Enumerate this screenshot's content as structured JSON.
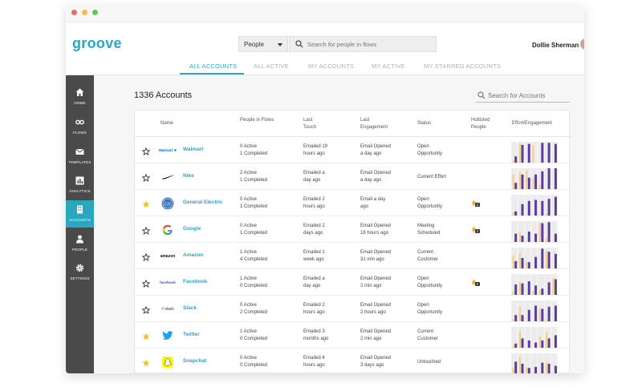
{
  "app": {
    "logo_text": "groove",
    "search_scope": "People",
    "search_placeholder": "Search for people in flows",
    "user_name": "Dollie Sherman"
  },
  "tabs": [
    "ALL ACCOUNTS",
    "ALL ACTIVE",
    "MY ACCOUNTS",
    "MY ACTIVE",
    "MY STARRED ACCOUNTS"
  ],
  "active_tab": "ALL ACCOUNTS",
  "sidebar": [
    {
      "label": "HOME",
      "icon": "home-icon"
    },
    {
      "label": "FLOWS",
      "icon": "infinity-icon"
    },
    {
      "label": "TEMPLATES",
      "icon": "mail-icon"
    },
    {
      "label": "ANALYTICS",
      "icon": "bar-chart-icon"
    },
    {
      "label": "ACCOUNTS",
      "icon": "accounts-icon",
      "active": true
    },
    {
      "label": "PEOPLE",
      "icon": "person-icon"
    },
    {
      "label": "SETTINGS",
      "icon": "gear-icon"
    }
  ],
  "main": {
    "title": "1336 Accounts",
    "search_placeholder": "Search for Accounts"
  },
  "columns": [
    "Name",
    "People in Flows",
    "Last Touch",
    "Last Engagement",
    "Status",
    "Hotlisted People",
    "Effort/Engagement"
  ],
  "colors": {
    "accent": "#2aa5c2",
    "sidebar": "#4a4a4a",
    "effort": "#5a3e99",
    "engagement": "#f3d08e",
    "star": "#f5bf1d"
  },
  "rows": [
    {
      "logo": "walmart-logo",
      "logo_text": "Walmart ✳",
      "name": "Walmart",
      "starred": false,
      "active": "0 Active",
      "completed": "1 Completed",
      "touch_1": "Emailed 19",
      "touch_2": "hours ago",
      "eng_1": "Email Opened",
      "eng_2": "a day ago",
      "status_1": "Open",
      "status_2": "Opportunity",
      "hotlisted": "",
      "effort": [
        0.3,
        0.85,
        0.9,
        0,
        0.95,
        0.95,
        0.9
      ],
      "engagement": [
        0.1,
        0.95,
        0,
        0.85,
        0,
        0,
        0
      ]
    },
    {
      "logo": "nike-logo",
      "logo_text": "",
      "name": "Nike",
      "starred": false,
      "active": "2 Active",
      "completed": "1 Completed",
      "touch_1": "Emailed a",
      "touch_2": "day ago",
      "eng_1": "Email Opened",
      "eng_2": "a day ago",
      "status_1": "Current Effort",
      "status_2": "",
      "hotlisted": "",
      "effort": [
        0.3,
        0.7,
        0.55,
        0.7,
        0.85,
        1,
        1
      ],
      "engagement": [
        0.7,
        0.8,
        0.9,
        0.55,
        0.2,
        0,
        0
      ]
    },
    {
      "logo": "ge-logo",
      "logo_text": "",
      "name": "General Electric",
      "starred": true,
      "active": "0 Active",
      "completed": "1 Completed",
      "touch_1": "Emailed 2",
      "touch_2": "hours ago",
      "eng_1": "Email a day",
      "eng_2": "ago",
      "status_1": "Open",
      "status_2": "Opportunity",
      "hotlisted": "3",
      "effort": [
        0.2,
        0.55,
        0.7,
        0.75,
        0.7,
        0.8,
        0.9
      ],
      "engagement": [
        0.15,
        0,
        0,
        0,
        0,
        0.1,
        0
      ]
    },
    {
      "logo": "google-logo",
      "logo_text": "",
      "name": "Google",
      "starred": false,
      "active": "0 Active",
      "completed": "1 Completed",
      "touch_1": "Emailed 2",
      "touch_2": "days ago",
      "eng_1": "Email Opened",
      "eng_2": "18 hours ago",
      "status_1": "Meeting",
      "status_2": "Scheduled",
      "hotlisted": "2",
      "effort": [
        0.4,
        0.3,
        0.5,
        0.4,
        0.9,
        0.95,
        0.4
      ],
      "engagement": [
        0,
        0.45,
        0,
        0,
        0.9,
        0.2,
        0
      ]
    },
    {
      "logo": "amazon-logo",
      "logo_text": "amazon",
      "name": "Amazon",
      "starred": false,
      "active": "1 Active",
      "completed": "4 Completed",
      "touch_1": "Emailed 1",
      "touch_2": "week ago",
      "eng_1": "Email Opened",
      "eng_2": "31 min ago",
      "status_1": "Current",
      "status_2": "Customer",
      "hotlisted": "",
      "effort": [
        0.35,
        0.5,
        0.3,
        0.55,
        0.95,
        0.8,
        0.7
      ],
      "engagement": [
        0.6,
        0.75,
        0.3,
        0,
        0,
        0.85,
        0
      ]
    },
    {
      "logo": "facebook-logo",
      "logo_text": "facebook",
      "name": "Facebook",
      "starred": false,
      "active": "1 Active",
      "completed": "0 Completed",
      "touch_1": "Emailed a",
      "touch_2": "day ago",
      "eng_1": "Email Opened",
      "eng_2": "2 min ago",
      "status_1": "Open",
      "status_2": "Opportunity",
      "hotlisted": "2",
      "effort": [
        0.5,
        0.55,
        0.65,
        0.45,
        0.3,
        0.6,
        0.75
      ],
      "engagement": [
        0.2,
        0.6,
        0,
        0.2,
        0.2,
        0,
        0.8
      ]
    },
    {
      "logo": "slack-logo",
      "logo_text": "slack",
      "name": "Slack",
      "starred": false,
      "active": "0 Active",
      "completed": "2 Completed",
      "touch_1": "Emailed 2",
      "touch_2": "hours ago",
      "eng_1": "Email Opened",
      "eng_2": "2 hours ago",
      "status_1": "Open",
      "status_2": "Opportunity",
      "hotlisted": "",
      "effort": [
        0.3,
        0.3,
        0.55,
        0.75,
        0.6,
        0.7,
        0.75
      ],
      "engagement": [
        0.1,
        0.7,
        0,
        0,
        0.6,
        0.1,
        0
      ]
    },
    {
      "logo": "twitter-logo",
      "logo_text": "",
      "name": "Twitter",
      "starred": true,
      "active": "1 Active",
      "completed": "0 Completed",
      "touch_1": "Emailed 3",
      "touch_2": "months ago",
      "eng_1": "Email Opened",
      "eng_2": "2 min ago",
      "status_1": "Current",
      "status_2": "Customer",
      "hotlisted": "",
      "effort": [
        0.2,
        0.45,
        0.35,
        0.25,
        0.35,
        0.45,
        0.6
      ],
      "engagement": [
        0.1,
        0.8,
        0,
        0,
        0.55,
        0.75,
        0
      ]
    },
    {
      "logo": "snapchat-logo",
      "logo_text": "",
      "name": "Snapchat",
      "starred": true,
      "active": "0 Active",
      "completed": "0 Completed",
      "touch_1": "Emailed 4",
      "touch_2": "hours ago",
      "eng_1": "Email Opened",
      "eng_2": "3 days ago",
      "status_1": "Untouched",
      "status_2": "",
      "hotlisted": "",
      "effort": [
        0.6,
        0.5,
        0.3,
        0.35,
        0.55,
        0.5,
        0.4
      ],
      "engagement": [
        0.3,
        0.85,
        0.3,
        0,
        0,
        0.55,
        0
      ]
    }
  ]
}
